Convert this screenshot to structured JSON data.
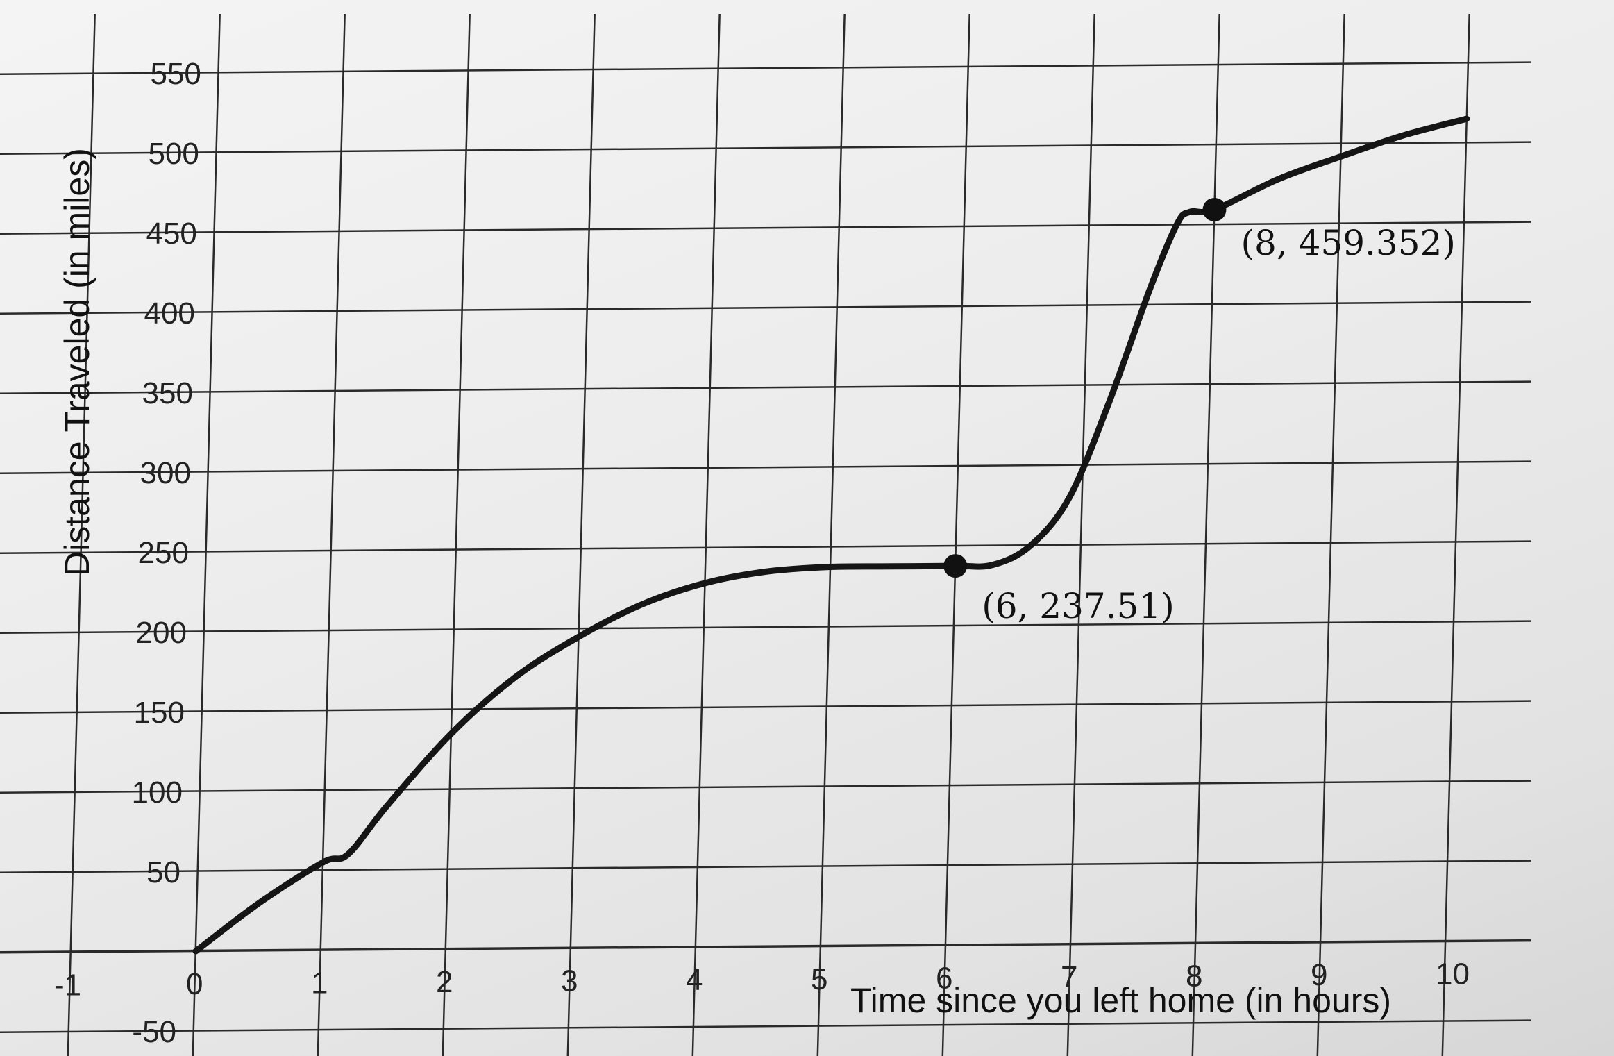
{
  "chart_data": {
    "type": "line",
    "xlabel": "Time since you left home (in hours)",
    "ylabel": "Distance Traveled (in miles)",
    "xlim": [
      -1,
      10.7
    ],
    "ylim": [
      -50,
      565
    ],
    "x_ticks": [
      -1,
      0,
      1,
      2,
      3,
      4,
      5,
      6,
      7,
      8,
      9,
      10
    ],
    "y_ticks": [
      -50,
      50,
      100,
      150,
      200,
      250,
      300,
      350,
      400,
      450,
      500,
      550
    ],
    "x_tick_labels": [
      "-1",
      "0",
      "1",
      "2",
      "3",
      "4",
      "5",
      "6",
      "7",
      "8",
      "9",
      "10"
    ],
    "y_tick_labels": [
      "-50",
      "50",
      "100",
      "150",
      "200",
      "250",
      "300",
      "350",
      "400",
      "450",
      "500",
      "550"
    ],
    "grid": true,
    "series": [
      {
        "x": [
          0,
          0.5,
          1,
          1.2,
          1.5,
          2,
          2.5,
          3,
          3.5,
          4,
          4.5,
          5,
          5.5,
          6,
          6.3,
          6.6,
          6.9,
          7.2,
          7.5,
          7.7,
          7.8,
          8,
          8.5,
          9,
          9.5,
          10
        ],
        "y": [
          0,
          30,
          55,
          60,
          90,
          135,
          170,
          195,
          215,
          228,
          235,
          237.5,
          237.51,
          237.51,
          238,
          250,
          280,
          340,
          410,
          450,
          458,
          459.352,
          478,
          492,
          505,
          515
        ]
      }
    ],
    "points": [
      {
        "x": 6,
        "y": 237.51,
        "label": "(6, 237.51)"
      },
      {
        "x": 8,
        "y": 459.352,
        "label": "(8, 459.352)"
      }
    ]
  }
}
